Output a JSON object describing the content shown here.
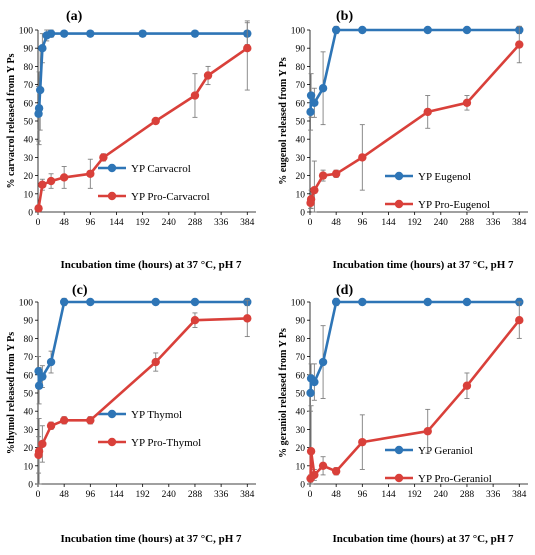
{
  "colors": {
    "blue": "#2E75B6",
    "red": "#D9403A",
    "error_bar": "#7f7f7f",
    "axis": "#000000"
  },
  "chart_data": [
    {
      "type": "line",
      "panel_label": "(a)",
      "xlabel": "Incubation time (hours) at 37 °C, pH 7",
      "ylabel": "% carvacrol released from Y Ps",
      "xlim": [
        0,
        400
      ],
      "ylim": [
        0,
        100
      ],
      "xticks": [
        0,
        48,
        96,
        144,
        192,
        240,
        288,
        336,
        384
      ],
      "yticks": [
        0,
        10,
        20,
        30,
        40,
        50,
        60,
        70,
        80,
        90,
        100
      ],
      "grid": false,
      "legend_position": "right",
      "series": [
        {
          "name": "YP Carvacrol",
          "color": "#2E75B6",
          "x": [
            1,
            2,
            4,
            8,
            16,
            24,
            48,
            96,
            192,
            288,
            384
          ],
          "y": [
            54,
            57,
            67,
            90,
            97,
            98,
            98,
            98,
            98,
            98,
            98
          ],
          "err": [
            15,
            20,
            22,
            8,
            3,
            2,
            1,
            1,
            1,
            1,
            6
          ]
        },
        {
          "name": "YP Pro-Carvacrol",
          "color": "#D9403A",
          "x": [
            1,
            8,
            24,
            48,
            96,
            120,
            216,
            288,
            312,
            384
          ],
          "y": [
            2,
            15,
            17,
            19,
            21,
            30,
            50,
            64,
            75,
            90
          ],
          "err": [
            0,
            3,
            4,
            6,
            8,
            2,
            1,
            12,
            5,
            23
          ]
        }
      ]
    },
    {
      "type": "line",
      "panel_label": "(b)",
      "xlabel": "Incubation time (hours) at 37 °C, pH 7",
      "ylabel": "% eugenol released from Y Ps",
      "xlim": [
        0,
        400
      ],
      "ylim": [
        0,
        100
      ],
      "xticks": [
        0,
        48,
        96,
        144,
        192,
        240,
        288,
        336,
        384
      ],
      "yticks": [
        0,
        10,
        20,
        30,
        40,
        50,
        60,
        70,
        80,
        90,
        100
      ],
      "grid": false,
      "legend_position": "right",
      "series": [
        {
          "name": "YP Eugenol",
          "color": "#2E75B6",
          "x": [
            1,
            2,
            8,
            24,
            48,
            96,
            216,
            288,
            384
          ],
          "y": [
            55,
            64,
            60,
            68,
            100,
            100,
            100,
            100,
            100
          ],
          "err": [
            10,
            12,
            8,
            20,
            2,
            1,
            1,
            1,
            2
          ]
        },
        {
          "name": "YP Pro-Eugenol",
          "color": "#D9403A",
          "x": [
            1,
            2,
            8,
            24,
            48,
            96,
            216,
            288,
            384
          ],
          "y": [
            5,
            7,
            12,
            20,
            21,
            30,
            55,
            60,
            92
          ],
          "err": [
            3,
            5,
            16,
            3,
            2,
            18,
            9,
            4,
            10
          ]
        }
      ]
    },
    {
      "type": "line",
      "panel_label": "(c)",
      "xlabel": "Incubation time (hours) at 37 °C, pH 7",
      "ylabel": "%thymol released from Y Ps",
      "xlim": [
        0,
        400
      ],
      "ylim": [
        0,
        100
      ],
      "xticks": [
        0,
        48,
        96,
        144,
        192,
        240,
        288,
        336,
        384
      ],
      "yticks": [
        0,
        10,
        20,
        30,
        40,
        50,
        60,
        70,
        80,
        90,
        100
      ],
      "grid": false,
      "legend_position": "right",
      "series": [
        {
          "name": "YP Thymol",
          "color": "#2E75B6",
          "x": [
            1,
            2,
            8,
            24,
            48,
            96,
            216,
            288,
            384
          ],
          "y": [
            62,
            54,
            59,
            67,
            100,
            100,
            100,
            100,
            100
          ],
          "err": [
            8,
            10,
            6,
            6,
            2,
            1,
            1,
            1,
            2
          ]
        },
        {
          "name": "YP Pro-Thymol",
          "color": "#D9403A",
          "x": [
            1,
            2,
            8,
            24,
            48,
            96,
            216,
            288,
            384
          ],
          "y": [
            16,
            18,
            22,
            32,
            35,
            35,
            67,
            90,
            91
          ],
          "err": [
            10,
            18,
            10,
            2,
            2,
            2,
            5,
            4,
            10
          ]
        }
      ]
    },
    {
      "type": "line",
      "panel_label": "(d)",
      "xlabel": "Incubation time (hours) at 37 °C, pH 7",
      "ylabel": "% geraniol released from Y Ps",
      "xlim": [
        0,
        400
      ],
      "ylim": [
        0,
        100
      ],
      "xticks": [
        0,
        48,
        96,
        144,
        192,
        240,
        288,
        336,
        384
      ],
      "yticks": [
        0,
        10,
        20,
        30,
        40,
        50,
        60,
        70,
        80,
        90,
        100
      ],
      "grid": false,
      "legend_position": "right",
      "series": [
        {
          "name": "YP Geraniol",
          "color": "#2E75B6",
          "x": [
            1,
            2,
            8,
            24,
            48,
            96,
            216,
            288,
            384
          ],
          "y": [
            50,
            58,
            56,
            67,
            100,
            100,
            100,
            100,
            100
          ],
          "err": [
            10,
            8,
            10,
            20,
            2,
            1,
            1,
            1,
            2
          ]
        },
        {
          "name": "YP Pro-Geraniol",
          "color": "#D9403A",
          "x": [
            1,
            2,
            8,
            24,
            48,
            96,
            216,
            288,
            384
          ],
          "y": [
            3,
            18,
            5,
            10,
            7,
            23,
            29,
            54,
            90
          ],
          "err": [
            2,
            25,
            3,
            5,
            2,
            15,
            12,
            7,
            10
          ]
        }
      ]
    }
  ]
}
